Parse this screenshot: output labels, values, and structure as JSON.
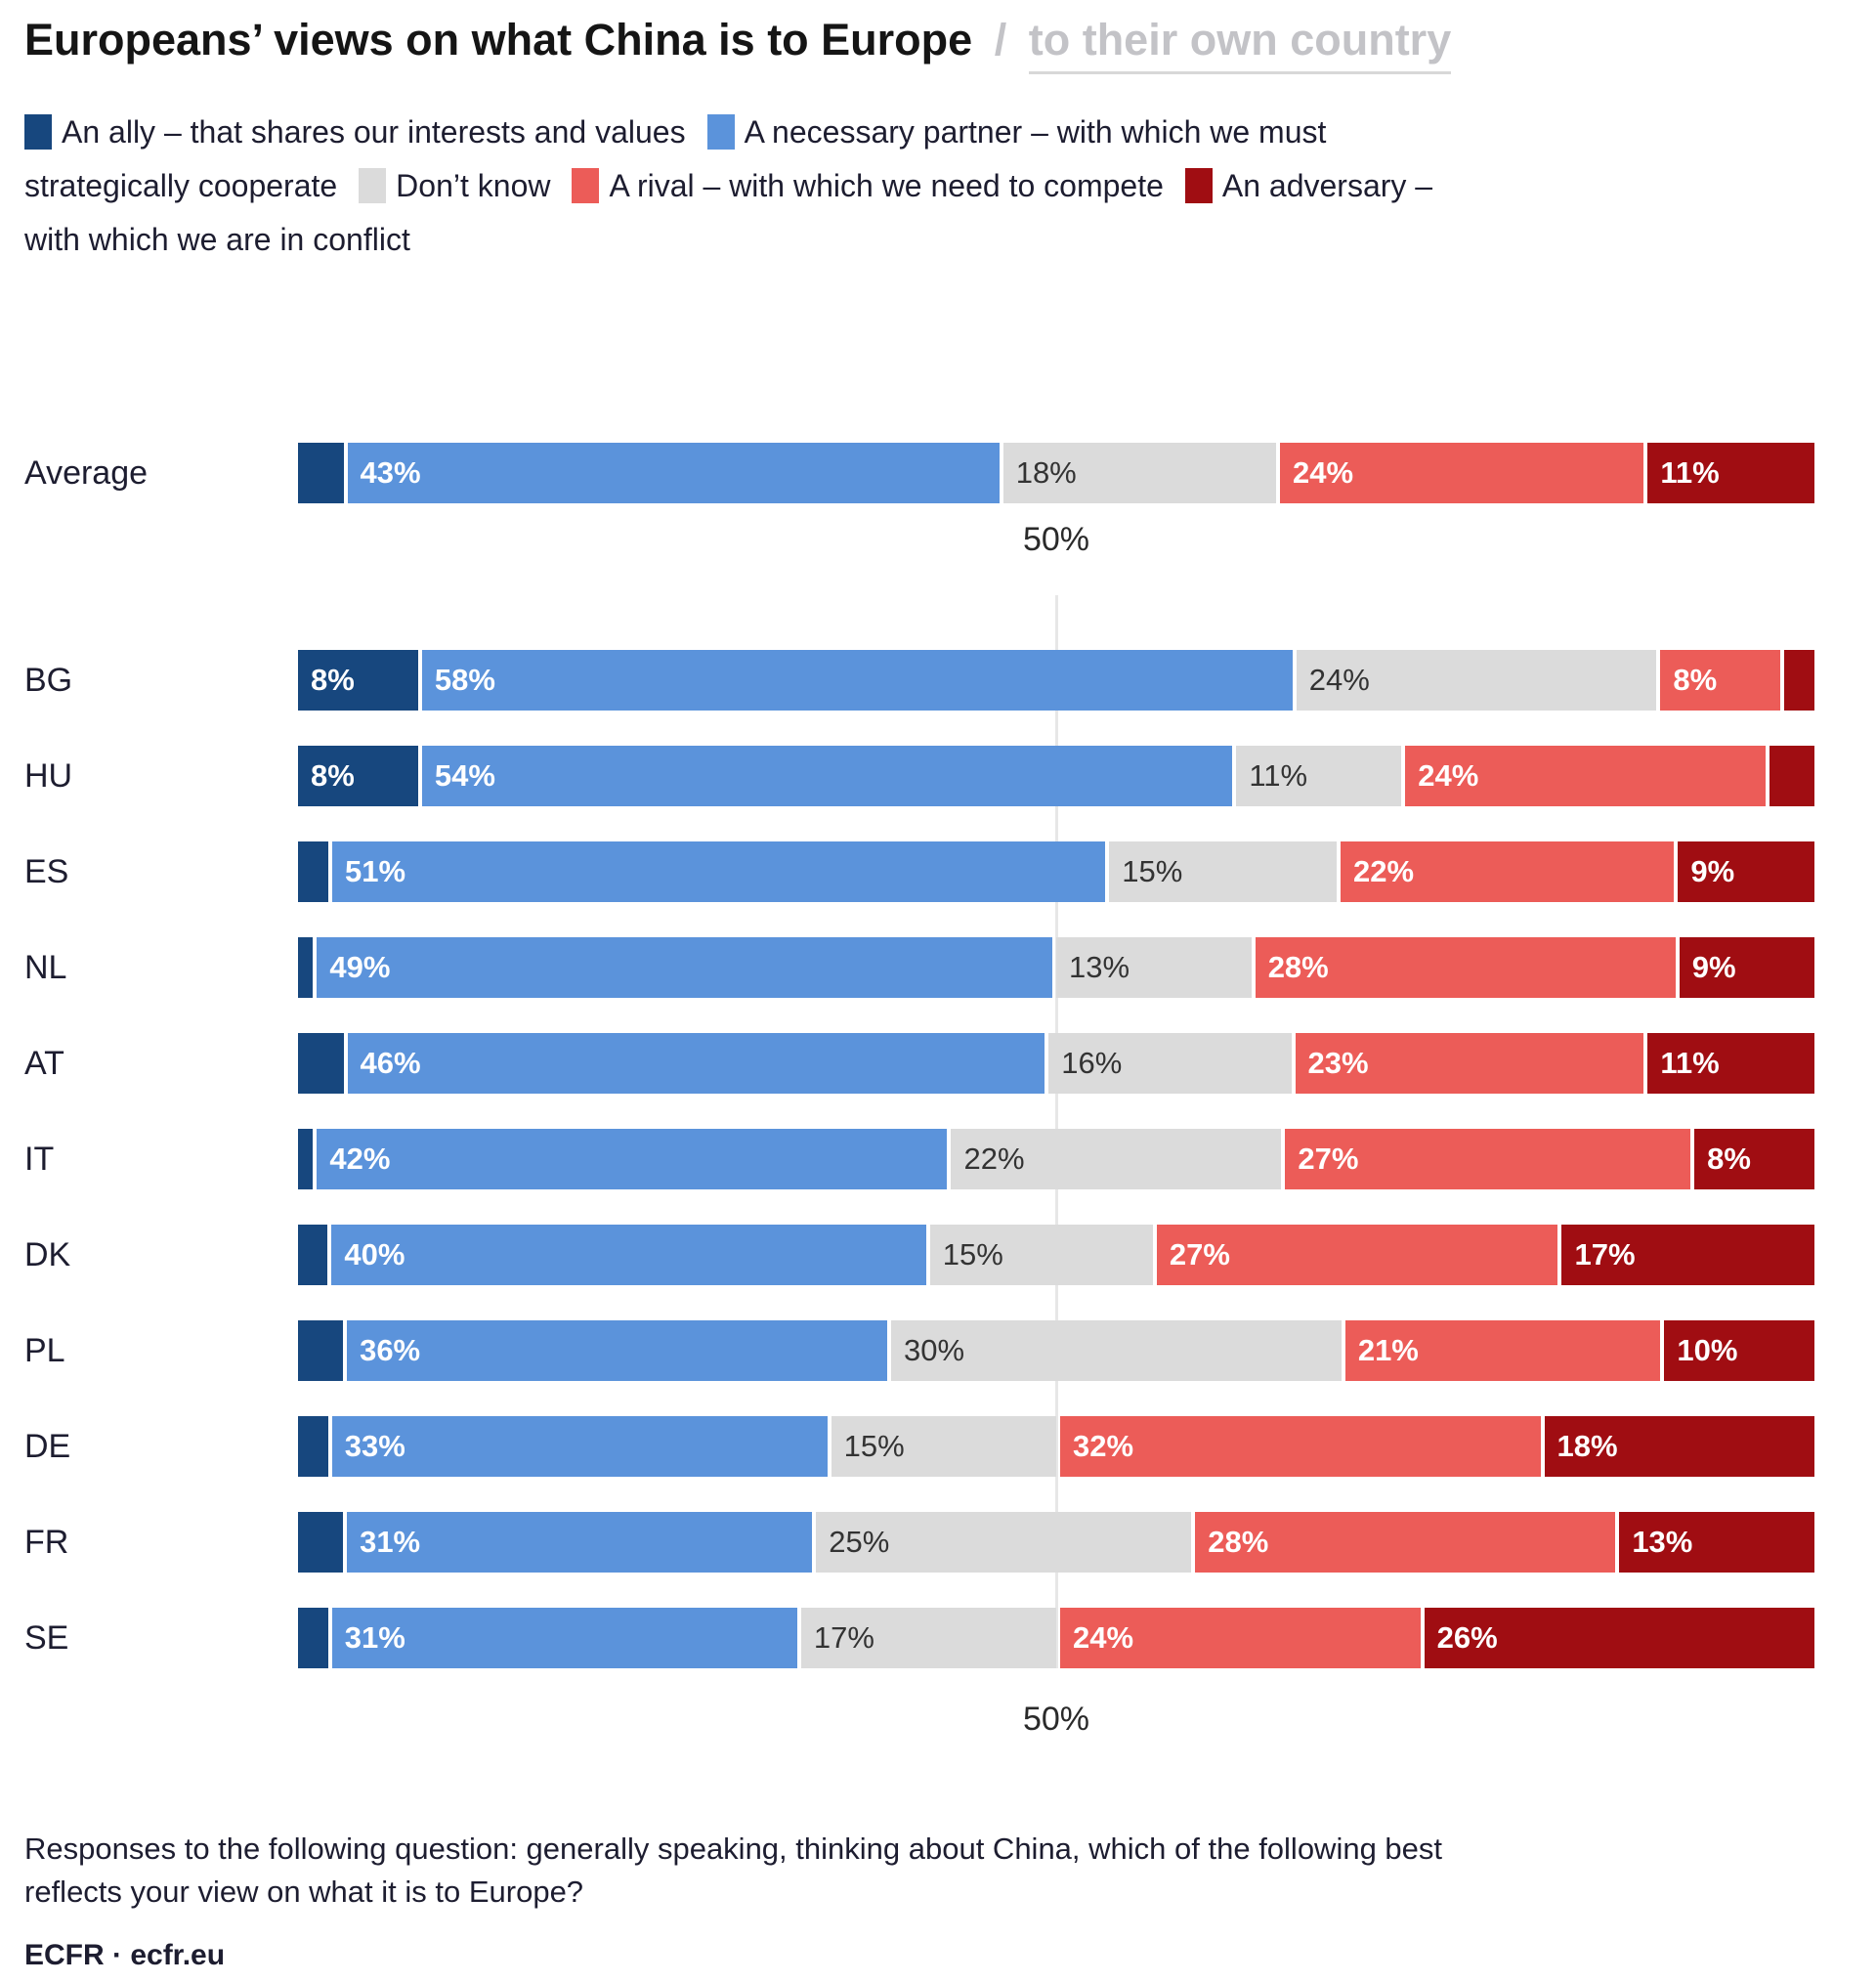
{
  "header": {
    "title_main": "Europeans’ views on what China is to Europe",
    "title_separator": "/",
    "title_toggle": "to their own country"
  },
  "axis": {
    "midline_label": "50%"
  },
  "footer": {
    "note": "Responses to the following question: generally speaking, thinking about China, which of the following best reflects your view on what it is to Europe?",
    "source": "ECFR · ecfr.eu"
  },
  "colors": {
    "ally_navy": "#17477E",
    "partner_blue": "#5B93DB",
    "dont_know_gray": "#DBDBDB",
    "rival_salmon": "#EC5C58",
    "adversary_dark_red": "#A00D12",
    "gridline": "#E7E7E7",
    "title_toggle_gray": "#C3C3C7"
  },
  "chart_data": {
    "type": "bar",
    "orientation": "horizontal",
    "stacked": true,
    "xlim": [
      0,
      100
    ],
    "gridline_at": 50,
    "grid": "single vertical line at 50%",
    "legend_position": "top",
    "min_value_labeled": 8,
    "categories": [
      "Average",
      "BG",
      "HU",
      "ES",
      "NL",
      "AT",
      "IT",
      "DK",
      "PL",
      "DE",
      "FR",
      "SE"
    ],
    "series": [
      {
        "key": "ally",
        "name": "An ally – that shares our interests and values",
        "color": "#17477E",
        "label_text_color": "white",
        "values": [
          3,
          8,
          8,
          2,
          1,
          3,
          1,
          2,
          3,
          2,
          3,
          2
        ]
      },
      {
        "key": "necessary_partner",
        "name": "A necessary partner – with which we must strategically cooperate",
        "color": "#5B93DB",
        "label_text_color": "white",
        "values": [
          43,
          58,
          54,
          51,
          49,
          46,
          42,
          40,
          36,
          33,
          31,
          31
        ]
      },
      {
        "key": "dont_know",
        "name": "Don’t know",
        "color": "#DBDBDB",
        "label_text_color": "dark",
        "values": [
          18,
          24,
          11,
          15,
          13,
          16,
          22,
          15,
          30,
          15,
          25,
          17
        ]
      },
      {
        "key": "rival",
        "name": "A rival – with which we need to compete",
        "color": "#EC5C58",
        "label_text_color": "white",
        "values": [
          24,
          8,
          24,
          22,
          28,
          23,
          27,
          27,
          21,
          32,
          28,
          24
        ]
      },
      {
        "key": "adversary",
        "name": "An adversary – with which we are in conflict",
        "color": "#A00D12",
        "label_text_color": "white",
        "values": [
          11,
          2,
          3,
          9,
          9,
          11,
          8,
          17,
          10,
          18,
          13,
          26
        ]
      }
    ],
    "note": "Values below 8% are drawn but not labelled in the chart"
  }
}
